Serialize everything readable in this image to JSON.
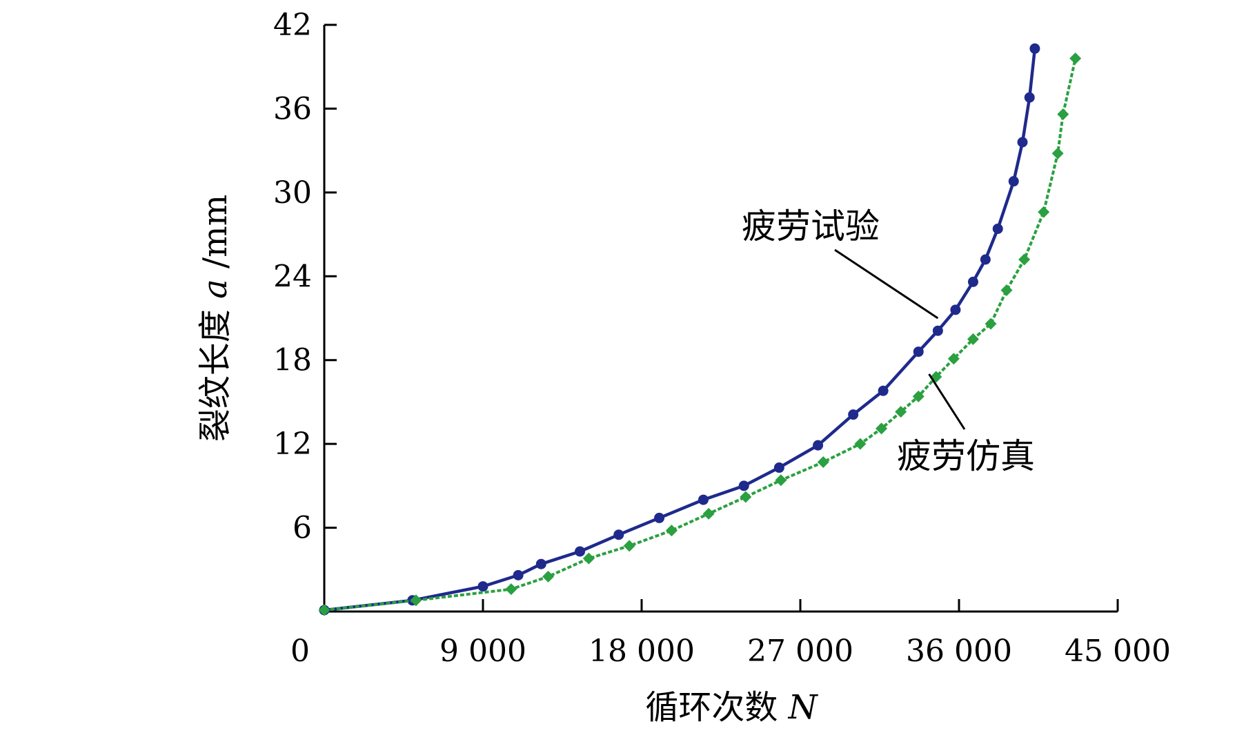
{
  "chart_data": {
    "type": "line",
    "title": "",
    "xlabel": "循环次数",
    "xlabel_var": "N",
    "ylabel": "裂纹长度",
    "ylabel_var": "a",
    "ylabel_unit": "/mm",
    "xlim": [
      0,
      45000
    ],
    "ylim": [
      0,
      42
    ],
    "x_ticks": [
      0,
      9000,
      18000,
      27000,
      36000,
      45000
    ],
    "x_tick_labels": [
      "0",
      "9 000",
      "18 000",
      "27 000",
      "36 000",
      "45 000"
    ],
    "y_ticks": [
      6,
      12,
      18,
      24,
      30,
      36,
      42
    ],
    "y_tick_labels": [
      "6",
      "12",
      "18",
      "24",
      "30",
      "36",
      "42"
    ],
    "grid": false,
    "legend": "none",
    "series": [
      {
        "name": "疲劳试验",
        "color": "#1f2a8c",
        "line_style": "solid",
        "marker": "circle",
        "points": [
          [
            0,
            0.1
          ],
          [
            5000,
            0.8
          ],
          [
            9000,
            1.8
          ],
          [
            11000,
            2.6
          ],
          [
            12300,
            3.4
          ],
          [
            14500,
            4.3
          ],
          [
            16700,
            5.5
          ],
          [
            19000,
            6.7
          ],
          [
            21500,
            8.0
          ],
          [
            23800,
            9.0
          ],
          [
            25800,
            10.3
          ],
          [
            28000,
            11.9
          ],
          [
            30000,
            14.1
          ],
          [
            31700,
            15.8
          ],
          [
            33700,
            18.6
          ],
          [
            34800,
            20.1
          ],
          [
            35800,
            21.6
          ],
          [
            36800,
            23.6
          ],
          [
            37500,
            25.2
          ],
          [
            38200,
            27.4
          ],
          [
            39100,
            30.8
          ],
          [
            39600,
            33.6
          ],
          [
            40000,
            36.8
          ],
          [
            40300,
            40.3
          ]
        ]
      },
      {
        "name": "疲劳仿真",
        "color": "#2aa040",
        "line_style": "dashed",
        "marker": "diamond",
        "points": [
          [
            0,
            0.1
          ],
          [
            5200,
            0.8
          ],
          [
            10600,
            1.6
          ],
          [
            12700,
            2.5
          ],
          [
            15000,
            3.8
          ],
          [
            17300,
            4.7
          ],
          [
            19700,
            5.8
          ],
          [
            21800,
            7.0
          ],
          [
            23900,
            8.2
          ],
          [
            25900,
            9.4
          ],
          [
            28300,
            10.7
          ],
          [
            30400,
            12.0
          ],
          [
            31600,
            13.1
          ],
          [
            32700,
            14.3
          ],
          [
            33700,
            15.4
          ],
          [
            34700,
            16.8
          ],
          [
            35700,
            18.1
          ],
          [
            36800,
            19.5
          ],
          [
            37800,
            20.6
          ],
          [
            38700,
            23.0
          ],
          [
            39700,
            25.2
          ],
          [
            40800,
            28.6
          ],
          [
            41600,
            32.8
          ],
          [
            41900,
            35.6
          ],
          [
            42600,
            39.6
          ]
        ]
      }
    ],
    "annotations": [
      {
        "text": "疲劳试验",
        "series_index": 0,
        "leader_to": [
          34800,
          21.0
        ]
      },
      {
        "text": "疲劳仿真",
        "series_index": 1,
        "leader_to": [
          34300,
          17.0
        ]
      }
    ]
  }
}
